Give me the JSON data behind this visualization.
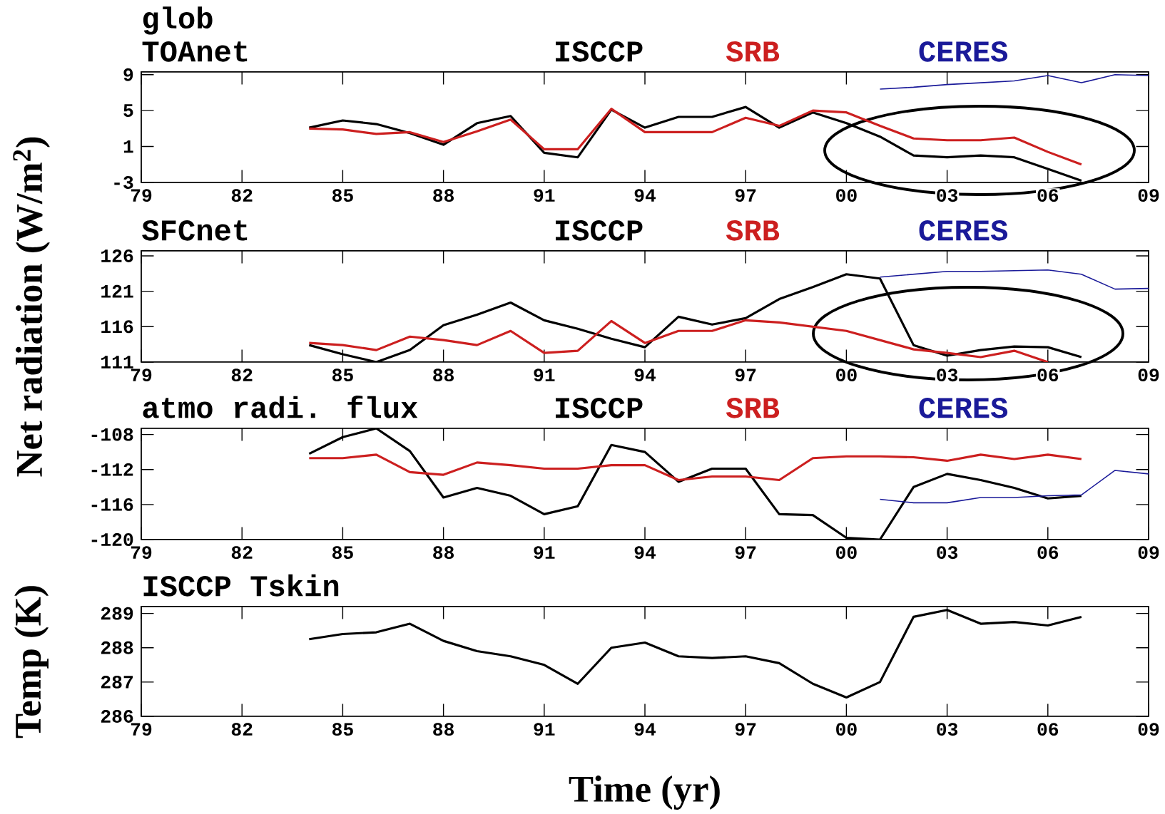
{
  "chart_data": [
    {
      "type": "line",
      "title": "glob",
      "subtitle": "TOAnet",
      "legend": "top",
      "xlim": [
        1979,
        2009
      ],
      "ylim": [
        -3,
        9.3
      ],
      "xticks": [
        {
          "value": 1979,
          "label": "79"
        },
        {
          "value": 1982,
          "label": "82"
        },
        {
          "value": 1985,
          "label": "85"
        },
        {
          "value": 1988,
          "label": "88"
        },
        {
          "value": 1991,
          "label": "91"
        },
        {
          "value": 1994,
          "label": "94"
        },
        {
          "value": 1997,
          "label": "97"
        },
        {
          "value": 2000,
          "label": "00"
        },
        {
          "value": 2003,
          "label": "03"
        },
        {
          "value": 2006,
          "label": "06"
        },
        {
          "value": 2009,
          "label": "09"
        }
      ],
      "yticks": [
        -3,
        1,
        5,
        9
      ],
      "x": [
        1984,
        1985,
        1986,
        1987,
        1988,
        1989,
        1990,
        1991,
        1992,
        1993,
        1994,
        1995,
        1996,
        1997,
        1998,
        1999,
        2000,
        2001,
        2002,
        2003,
        2004,
        2005,
        2006,
        2007
      ],
      "series": [
        {
          "name": "ISCCP",
          "color": "#000000",
          "values": [
            3.1,
            3.9,
            3.5,
            2.5,
            1.2,
            3.6,
            4.4,
            0.3,
            -0.2,
            5.1,
            3.1,
            4.3,
            4.3,
            5.4,
            3.1,
            4.8,
            3.6,
            2.1,
            0.0,
            -0.2,
            0.0,
            -0.2,
            -1.5,
            -2.8
          ]
        },
        {
          "name": "SRB",
          "color": "#cc1f1f",
          "values": [
            3.0,
            2.9,
            2.4,
            2.6,
            1.5,
            2.7,
            4.0,
            0.7,
            0.7,
            5.2,
            2.6,
            2.6,
            2.6,
            4.2,
            3.3,
            5.0,
            4.8,
            3.3,
            1.9,
            1.7,
            1.7,
            2.0,
            0.4,
            -1.0
          ]
        },
        {
          "name": "CERES",
          "color": "#1a1a99",
          "x": [
            2001,
            2002,
            2003,
            2004,
            2005,
            2006,
            2007,
            2008,
            2009
          ],
          "values": [
            7.4,
            7.6,
            7.9,
            8.1,
            8.3,
            8.9,
            8.1,
            9.0,
            8.9
          ]
        }
      ]
    },
    {
      "type": "line",
      "title": "SFCnet",
      "ylabel": "Net radiation (W/m$^{2}$)",
      "legend": "top",
      "xlim": [
        1979,
        2009
      ],
      "ylim": [
        111,
        126.7
      ],
      "xticks": [
        {
          "value": 1979,
          "label": "79"
        },
        {
          "value": 1982,
          "label": "82"
        },
        {
          "value": 1985,
          "label": "85"
        },
        {
          "value": 1988,
          "label": "88"
        },
        {
          "value": 1991,
          "label": "91"
        },
        {
          "value": 1994,
          "label": "94"
        },
        {
          "value": 1997,
          "label": "97"
        },
        {
          "value": 2000,
          "label": "00"
        },
        {
          "value": 2003,
          "label": "03"
        },
        {
          "value": 2006,
          "label": "06"
        },
        {
          "value": 2009,
          "label": "09"
        }
      ],
      "yticks": [
        111,
        116,
        121,
        126
      ],
      "x": [
        1984,
        1985,
        1986,
        1987,
        1988,
        1989,
        1990,
        1991,
        1992,
        1993,
        1994,
        1995,
        1996,
        1997,
        1998,
        1999,
        2000,
        2001,
        2002,
        2003,
        2004,
        2005,
        2006,
        2007
      ],
      "series": [
        {
          "name": "ISCCP",
          "color": "#000000",
          "values": [
            113.4,
            112.1,
            111.0,
            112.7,
            116.2,
            117.7,
            119.4,
            116.9,
            115.7,
            114.3,
            113.1,
            117.4,
            116.3,
            117.2,
            119.9,
            121.6,
            123.4,
            122.8,
            113.4,
            111.9,
            112.7,
            113.2,
            113.1,
            111.7
          ]
        },
        {
          "name": "SRB",
          "color": "#cc1f1f",
          "values": [
            113.7,
            113.4,
            112.7,
            114.6,
            114.1,
            113.4,
            115.4,
            112.3,
            112.6,
            116.8,
            113.7,
            115.4,
            115.4,
            116.9,
            116.6,
            116.0,
            115.4,
            114.1,
            112.8,
            112.3,
            111.7,
            112.6,
            111.0,
            null
          ]
        },
        {
          "name": "CERES",
          "color": "#1a1a99",
          "x": [
            2001,
            2002,
            2003,
            2004,
            2005,
            2006,
            2007,
            2008,
            2009
          ],
          "values": [
            123.0,
            123.4,
            123.8,
            123.8,
            123.9,
            124.0,
            123.4,
            121.3,
            121.4
          ]
        }
      ]
    },
    {
      "type": "line",
      "title": "atmo radi. flux",
      "legend": "top",
      "xlim": [
        1979,
        2009
      ],
      "ylim": [
        -120,
        -107.3
      ],
      "xticks": [
        {
          "value": 1979,
          "label": "79"
        },
        {
          "value": 1982,
          "label": "82"
        },
        {
          "value": 1985,
          "label": "85"
        },
        {
          "value": 1988,
          "label": "88"
        },
        {
          "value": 1991,
          "label": "91"
        },
        {
          "value": 1994,
          "label": "94"
        },
        {
          "value": 1997,
          "label": "97"
        },
        {
          "value": 2000,
          "label": "00"
        },
        {
          "value": 2003,
          "label": "03"
        },
        {
          "value": 2006,
          "label": "06"
        },
        {
          "value": 2009,
          "label": "09"
        }
      ],
      "yticks": [
        -120,
        -116,
        -112,
        -108
      ],
      "x": [
        1984,
        1985,
        1986,
        1987,
        1988,
        1989,
        1990,
        1991,
        1992,
        1993,
        1994,
        1995,
        1996,
        1997,
        1998,
        1999,
        2000,
        2001,
        2002,
        2003,
        2004,
        2005,
        2006,
        2007
      ],
      "series": [
        {
          "name": "ISCCP",
          "color": "#000000",
          "values": [
            -110.2,
            -108.3,
            -107.3,
            -109.9,
            -115.2,
            -114.1,
            -115.0,
            -117.1,
            -116.2,
            -109.2,
            -110.0,
            -113.4,
            -111.9,
            -111.9,
            -117.1,
            -117.2,
            -119.8,
            -120.0,
            -114.0,
            -112.5,
            -113.2,
            -114.1,
            -115.3,
            -115.0
          ]
        },
        {
          "name": "SRB",
          "color": "#cc1f1f",
          "values": [
            -110.7,
            -110.7,
            -110.3,
            -112.3,
            -112.6,
            -111.2,
            -111.5,
            -111.9,
            -111.9,
            -111.5,
            -111.5,
            -113.2,
            -112.8,
            -112.8,
            -113.2,
            -110.7,
            -110.5,
            -110.5,
            -110.6,
            -111.0,
            -110.3,
            -110.8,
            -110.3,
            -110.8
          ]
        },
        {
          "name": "CERES",
          "color": "#1a1a99",
          "x": [
            2001,
            2002,
            2003,
            2004,
            2005,
            2006,
            2007,
            2008,
            2009
          ],
          "values": [
            -115.4,
            -115.8,
            -115.8,
            -115.2,
            -115.2,
            -115.0,
            -114.9,
            -112.1,
            -112.5
          ]
        }
      ]
    },
    {
      "type": "line",
      "title": "ISCCP Tskin",
      "xlabel": "Time (yr)",
      "ylabel": "Temp (K)",
      "xlim": [
        1979,
        2009
      ],
      "ylim": [
        286,
        289.2
      ],
      "xticks": [
        {
          "value": 1979,
          "label": "79"
        },
        {
          "value": 1982,
          "label": "82"
        },
        {
          "value": 1985,
          "label": "85"
        },
        {
          "value": 1988,
          "label": "88"
        },
        {
          "value": 1991,
          "label": "91"
        },
        {
          "value": 1994,
          "label": "94"
        },
        {
          "value": 1997,
          "label": "97"
        },
        {
          "value": 2000,
          "label": "00"
        },
        {
          "value": 2003,
          "label": "03"
        },
        {
          "value": 2006,
          "label": "06"
        },
        {
          "value": 2009,
          "label": "09"
        }
      ],
      "yticks": [
        286,
        287,
        288,
        289
      ],
      "x": [
        1984,
        1985,
        1986,
        1987,
        1988,
        1989,
        1990,
        1991,
        1992,
        1993,
        1994,
        1995,
        1996,
        1997,
        1998,
        1999,
        2000,
        2001,
        2002,
        2003,
        2004,
        2005,
        2006,
        2007
      ],
      "series": [
        {
          "color": "#000000",
          "values": [
            288.25,
            288.4,
            288.45,
            288.7,
            288.2,
            287.9,
            287.75,
            287.5,
            286.95,
            288.0,
            288.15,
            287.75,
            287.7,
            287.75,
            287.55,
            286.95,
            286.55,
            287.0,
            288.9,
            289.1,
            288.7,
            288.75,
            288.65,
            288.9
          ]
        }
      ]
    }
  ]
}
